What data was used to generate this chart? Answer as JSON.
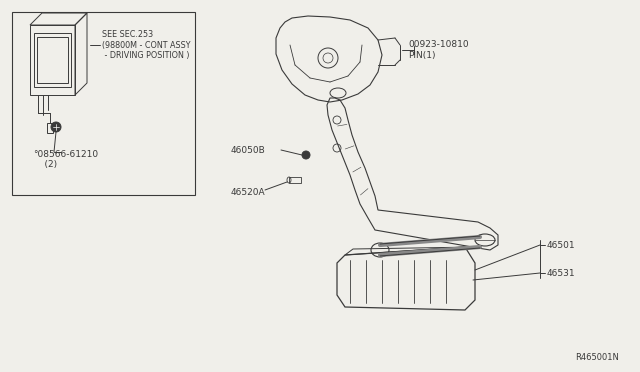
{
  "bg_color": "#f0efea",
  "line_color": "#3a3a3a",
  "ref_code": "R465001N",
  "fig_width": 6.4,
  "fig_height": 3.72,
  "dpi": 100,
  "see_sec_text": "SEE SEC.253\n(98800M - CONT ASSY\n - DRIVING POSITION )",
  "label_08566": "°08566-61210\n    (2)",
  "label_46050B": "46050B",
  "label_46520A": "46520A",
  "label_00923": "00923-10810\nPIN(1)",
  "label_46501": "46501",
  "label_46531": "46531"
}
